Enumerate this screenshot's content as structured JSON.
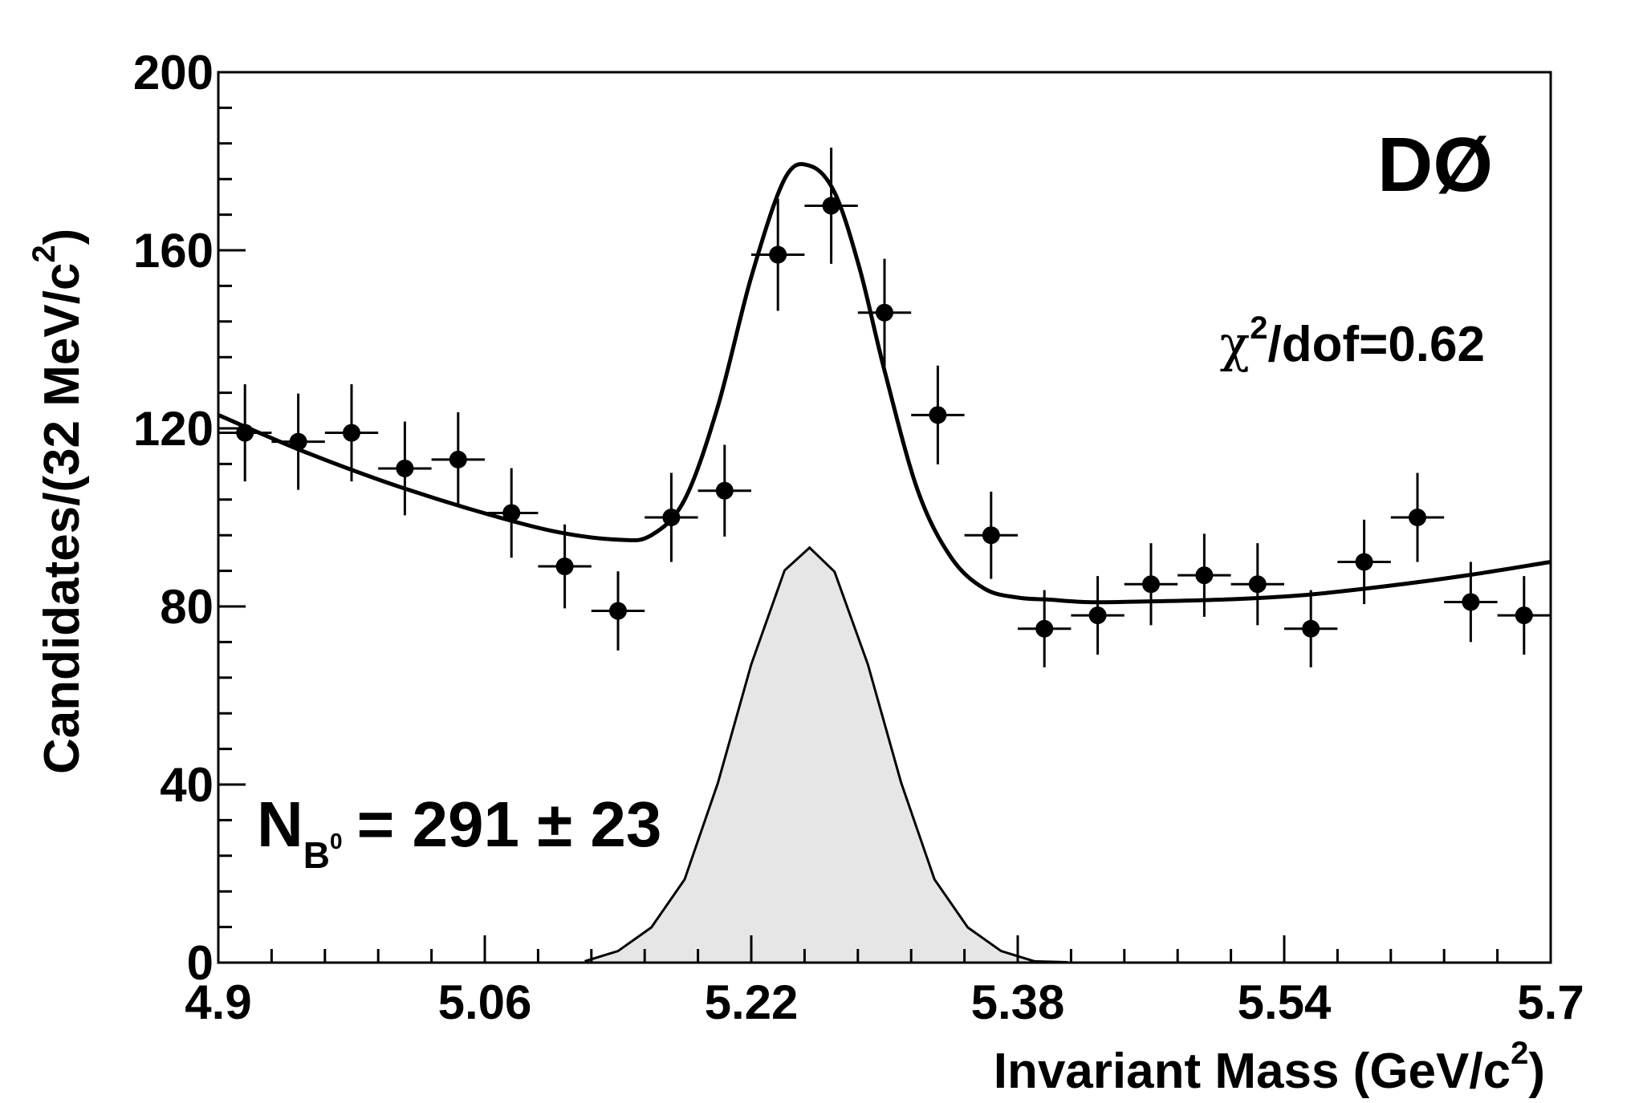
{
  "chart_data": {
    "type": "scatter",
    "xlabel": "Invariant Mass (GeV/c",
    "xlabel_sup": "2",
    "xlabel_end": ")",
    "ylabel": "Candidates/(32 MeV/c",
    "ylabel_sup": "2",
    "ylabel_end": ")",
    "xlim": [
      4.9,
      5.7
    ],
    "ylim": [
      0,
      200
    ],
    "x_ticks": [
      "4.9",
      "5.06",
      "5.22",
      "5.38",
      "5.54",
      "5.7"
    ],
    "y_ticks": [
      "0",
      "40",
      "80",
      "120",
      "160",
      "200"
    ],
    "bin_width": 0.032,
    "series": [
      {
        "kind": "data-points",
        "x": [
          4.916,
          4.948,
          4.98,
          5.012,
          5.044,
          5.076,
          5.108,
          5.14,
          5.172,
          5.204,
          5.236,
          5.268,
          5.3,
          5.332,
          5.364,
          5.396,
          5.428,
          5.46,
          5.492,
          5.524,
          5.556,
          5.588,
          5.62,
          5.652,
          5.684
        ],
        "y": [
          119,
          117,
          119,
          111,
          113,
          101,
          89,
          79,
          100,
          106,
          159,
          170,
          146,
          123,
          96,
          75,
          78,
          85,
          87,
          85,
          75,
          90,
          100,
          81,
          78
        ]
      },
      {
        "kind": "total-fit",
        "x": [
          4.9,
          4.95,
          5.0,
          5.05,
          5.1,
          5.14,
          5.16,
          5.18,
          5.2,
          5.22,
          5.24,
          5.255,
          5.27,
          5.285,
          5.3,
          5.32,
          5.34,
          5.36,
          5.38,
          5.4,
          5.42,
          5.44,
          5.5,
          5.55,
          5.6,
          5.65,
          5.7
        ],
        "y": [
          123,
          115,
          108,
          102,
          97,
          95,
          96,
          104,
          125,
          154,
          176,
          179,
          173,
          156,
          133,
          106,
          91,
          84,
          82,
          81.5,
          81,
          81,
          81.5,
          82.5,
          84.5,
          87,
          90
        ]
      },
      {
        "kind": "signal-gaussian",
        "x": [
          5.12,
          5.14,
          5.16,
          5.18,
          5.2,
          5.22,
          5.24,
          5.255,
          5.27,
          5.29,
          5.31,
          5.33,
          5.35,
          5.37,
          5.39,
          5.41
        ],
        "y": [
          0.3,
          2.6,
          7.9,
          18.7,
          40.4,
          67.0,
          88.1,
          93.2,
          87.8,
          67.0,
          40.4,
          18.7,
          7.9,
          2.6,
          0.3,
          0.1
        ]
      }
    ],
    "annotations": {
      "experiment": "DØ",
      "chi2_symbol": "χ",
      "chi2_sup": "2",
      "chi2_text": "/dof=0.62",
      "yield_N": "N",
      "yield_sub": "B",
      "yield_subsup": "0",
      "yield_text": "= 291 ± 23"
    }
  }
}
